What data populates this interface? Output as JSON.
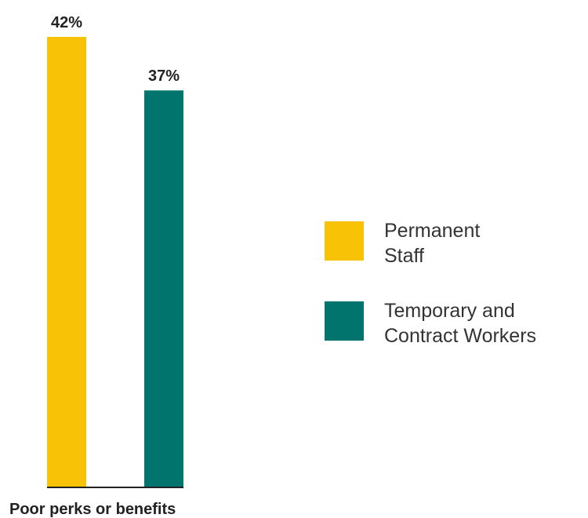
{
  "chart_data": {
    "type": "bar",
    "categories": [
      "Poor perks or benefits"
    ],
    "series": [
      {
        "name": "Permanent Staff",
        "name_lines": [
          "Permanent",
          "Staff"
        ],
        "values": [
          42
        ],
        "label": "42%",
        "color": "#F8C307"
      },
      {
        "name": "Temporary and Contract Workers",
        "name_lines": [
          "Temporary and",
          "Contract Workers"
        ],
        "values": [
          37
        ],
        "label": "37%",
        "color": "#01756D"
      }
    ],
    "title": "",
    "xlabel": "",
    "ylabel": "",
    "ylim": [
      0,
      42
    ],
    "grid": false,
    "legend": "right",
    "baseline_color": "#222222"
  }
}
